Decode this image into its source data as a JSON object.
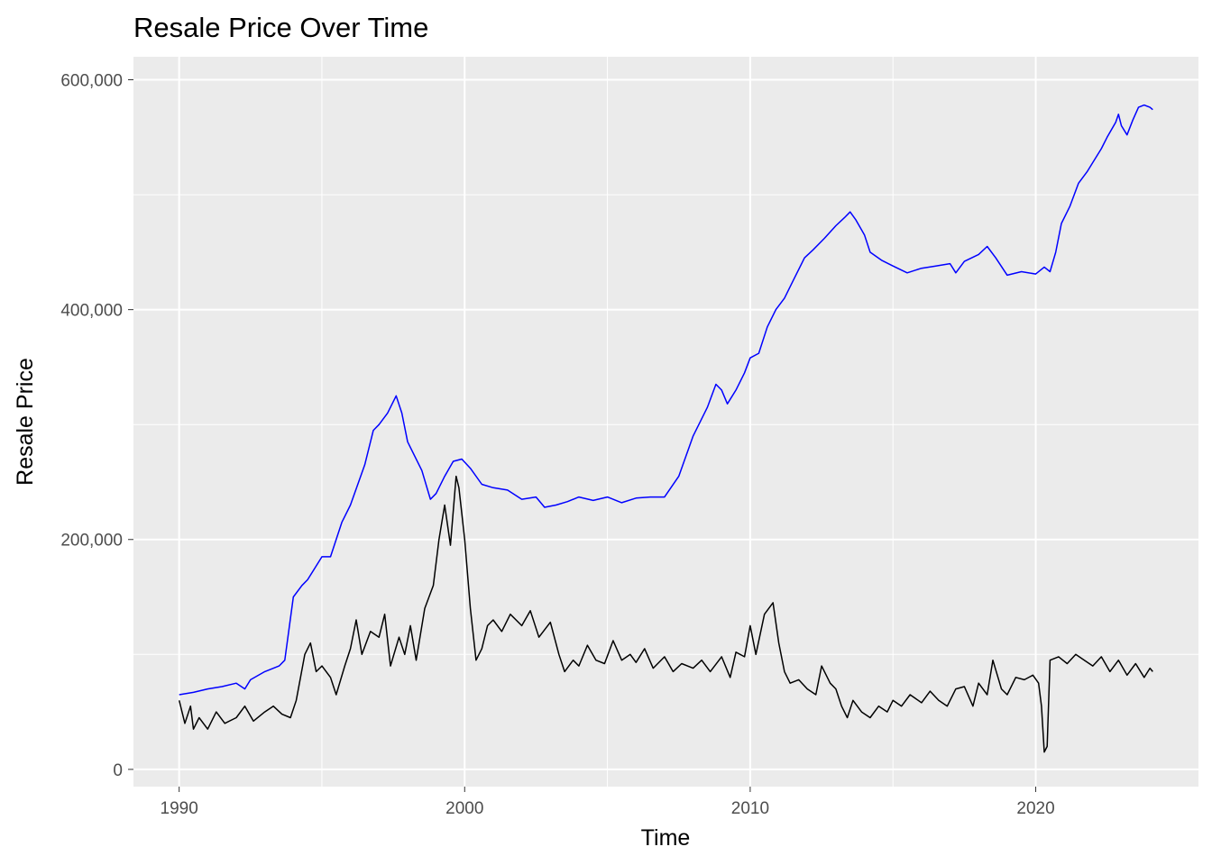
{
  "chart_data": {
    "type": "line",
    "title": "Resale Price Over Time",
    "xlabel": "Time",
    "ylabel": "Resale Price",
    "xlim": [
      1988.4,
      2025.7
    ],
    "ylim": [
      -15000,
      620000
    ],
    "x_ticks": [
      1990,
      2000,
      2010,
      2020
    ],
    "x_tick_labels": [
      "1990",
      "2000",
      "2010",
      "2020"
    ],
    "y_ticks": [
      0,
      200000,
      400000,
      600000
    ],
    "y_tick_labels": [
      "0",
      "200,000",
      "400,000",
      "600,000"
    ],
    "x_minor_ticks": [
      1995,
      2005,
      2015
    ],
    "y_minor_ticks": [
      100000,
      300000,
      500000
    ],
    "grid": true,
    "colors": {
      "panel": "#ebebeb",
      "grid": "#ffffff",
      "series_upper": "#0000ff",
      "series_lower": "#000000"
    },
    "series": [
      {
        "name": "upper",
        "color": "#0000ff",
        "points": [
          [
            1990.0,
            65000
          ],
          [
            1990.5,
            67000
          ],
          [
            1991.0,
            70000
          ],
          [
            1991.5,
            72000
          ],
          [
            1992.0,
            75000
          ],
          [
            1992.3,
            70000
          ],
          [
            1992.5,
            78000
          ],
          [
            1993.0,
            85000
          ],
          [
            1993.5,
            90000
          ],
          [
            1993.7,
            95000
          ],
          [
            1994.0,
            150000
          ],
          [
            1994.3,
            160000
          ],
          [
            1994.5,
            165000
          ],
          [
            1995.0,
            185000
          ],
          [
            1995.3,
            185000
          ],
          [
            1995.7,
            215000
          ],
          [
            1996.0,
            230000
          ],
          [
            1996.5,
            265000
          ],
          [
            1996.8,
            295000
          ],
          [
            1997.0,
            300000
          ],
          [
            1997.3,
            310000
          ],
          [
            1997.6,
            325000
          ],
          [
            1997.8,
            310000
          ],
          [
            1998.0,
            285000
          ],
          [
            1998.5,
            260000
          ],
          [
            1998.8,
            235000
          ],
          [
            1999.0,
            240000
          ],
          [
            1999.3,
            255000
          ],
          [
            1999.6,
            268000
          ],
          [
            1999.9,
            270000
          ],
          [
            2000.2,
            262000
          ],
          [
            2000.6,
            248000
          ],
          [
            2001.0,
            245000
          ],
          [
            2001.5,
            243000
          ],
          [
            2002.0,
            235000
          ],
          [
            2002.5,
            237000
          ],
          [
            2002.8,
            228000
          ],
          [
            2003.2,
            230000
          ],
          [
            2003.6,
            233000
          ],
          [
            2004.0,
            237000
          ],
          [
            2004.5,
            234000
          ],
          [
            2005.0,
            237000
          ],
          [
            2005.5,
            232000
          ],
          [
            2006.0,
            236000
          ],
          [
            2006.5,
            237000
          ],
          [
            2007.0,
            237000
          ],
          [
            2007.5,
            255000
          ],
          [
            2008.0,
            290000
          ],
          [
            2008.5,
            315000
          ],
          [
            2008.8,
            335000
          ],
          [
            2009.0,
            330000
          ],
          [
            2009.2,
            318000
          ],
          [
            2009.5,
            330000
          ],
          [
            2009.8,
            345000
          ],
          [
            2010.0,
            358000
          ],
          [
            2010.3,
            362000
          ],
          [
            2010.6,
            385000
          ],
          [
            2010.9,
            400000
          ],
          [
            2011.2,
            410000
          ],
          [
            2011.5,
            425000
          ],
          [
            2011.9,
            445000
          ],
          [
            2012.2,
            452000
          ],
          [
            2012.6,
            462000
          ],
          [
            2013.0,
            473000
          ],
          [
            2013.3,
            480000
          ],
          [
            2013.5,
            485000
          ],
          [
            2013.7,
            478000
          ],
          [
            2014.0,
            465000
          ],
          [
            2014.2,
            450000
          ],
          [
            2014.6,
            443000
          ],
          [
            2015.0,
            438000
          ],
          [
            2015.5,
            432000
          ],
          [
            2016.0,
            436000
          ],
          [
            2016.5,
            438000
          ],
          [
            2017.0,
            440000
          ],
          [
            2017.2,
            432000
          ],
          [
            2017.5,
            442000
          ],
          [
            2018.0,
            448000
          ],
          [
            2018.3,
            455000
          ],
          [
            2018.6,
            445000
          ],
          [
            2019.0,
            430000
          ],
          [
            2019.5,
            433000
          ],
          [
            2020.0,
            431000
          ],
          [
            2020.3,
            437000
          ],
          [
            2020.5,
            433000
          ],
          [
            2020.7,
            450000
          ],
          [
            2020.9,
            475000
          ],
          [
            2021.2,
            490000
          ],
          [
            2021.5,
            510000
          ],
          [
            2021.8,
            520000
          ],
          [
            2022.0,
            528000
          ],
          [
            2022.3,
            540000
          ],
          [
            2022.5,
            550000
          ],
          [
            2022.8,
            563000
          ],
          [
            2022.9,
            570000
          ],
          [
            2023.0,
            560000
          ],
          [
            2023.2,
            552000
          ],
          [
            2023.4,
            565000
          ],
          [
            2023.6,
            576000
          ],
          [
            2023.8,
            578000
          ],
          [
            2024.0,
            576000
          ],
          [
            2024.1,
            574000
          ]
        ]
      },
      {
        "name": "lower",
        "color": "#000000",
        "points": [
          [
            1990.0,
            60000
          ],
          [
            1990.2,
            40000
          ],
          [
            1990.4,
            55000
          ],
          [
            1990.5,
            35000
          ],
          [
            1990.7,
            45000
          ],
          [
            1991.0,
            35000
          ],
          [
            1991.3,
            50000
          ],
          [
            1991.6,
            40000
          ],
          [
            1992.0,
            45000
          ],
          [
            1992.3,
            55000
          ],
          [
            1992.6,
            42000
          ],
          [
            1993.0,
            50000
          ],
          [
            1993.3,
            55000
          ],
          [
            1993.6,
            48000
          ],
          [
            1993.9,
            45000
          ],
          [
            1994.1,
            60000
          ],
          [
            1994.4,
            100000
          ],
          [
            1994.6,
            110000
          ],
          [
            1994.8,
            85000
          ],
          [
            1995.0,
            90000
          ],
          [
            1995.3,
            80000
          ],
          [
            1995.5,
            65000
          ],
          [
            1995.8,
            90000
          ],
          [
            1996.0,
            105000
          ],
          [
            1996.2,
            130000
          ],
          [
            1996.4,
            100000
          ],
          [
            1996.7,
            120000
          ],
          [
            1997.0,
            115000
          ],
          [
            1997.2,
            135000
          ],
          [
            1997.4,
            90000
          ],
          [
            1997.7,
            115000
          ],
          [
            1997.9,
            100000
          ],
          [
            1998.1,
            125000
          ],
          [
            1998.3,
            95000
          ],
          [
            1998.6,
            140000
          ],
          [
            1998.9,
            160000
          ],
          [
            1999.1,
            200000
          ],
          [
            1999.3,
            230000
          ],
          [
            1999.5,
            195000
          ],
          [
            1999.7,
            255000
          ],
          [
            1999.8,
            245000
          ],
          [
            2000.0,
            200000
          ],
          [
            2000.2,
            140000
          ],
          [
            2000.4,
            95000
          ],
          [
            2000.6,
            105000
          ],
          [
            2000.8,
            125000
          ],
          [
            2001.0,
            130000
          ],
          [
            2001.3,
            120000
          ],
          [
            2001.6,
            135000
          ],
          [
            2002.0,
            125000
          ],
          [
            2002.3,
            138000
          ],
          [
            2002.6,
            115000
          ],
          [
            2003.0,
            128000
          ],
          [
            2003.3,
            100000
          ],
          [
            2003.5,
            85000
          ],
          [
            2003.8,
            95000
          ],
          [
            2004.0,
            90000
          ],
          [
            2004.3,
            108000
          ],
          [
            2004.6,
            95000
          ],
          [
            2004.9,
            92000
          ],
          [
            2005.2,
            112000
          ],
          [
            2005.5,
            95000
          ],
          [
            2005.8,
            100000
          ],
          [
            2006.0,
            93000
          ],
          [
            2006.3,
            105000
          ],
          [
            2006.6,
            88000
          ],
          [
            2007.0,
            98000
          ],
          [
            2007.3,
            85000
          ],
          [
            2007.6,
            92000
          ],
          [
            2008.0,
            88000
          ],
          [
            2008.3,
            95000
          ],
          [
            2008.6,
            85000
          ],
          [
            2009.0,
            98000
          ],
          [
            2009.3,
            80000
          ],
          [
            2009.5,
            102000
          ],
          [
            2009.8,
            98000
          ],
          [
            2010.0,
            125000
          ],
          [
            2010.2,
            100000
          ],
          [
            2010.5,
            135000
          ],
          [
            2010.8,
            145000
          ],
          [
            2011.0,
            110000
          ],
          [
            2011.2,
            85000
          ],
          [
            2011.4,
            75000
          ],
          [
            2011.7,
            78000
          ],
          [
            2012.0,
            70000
          ],
          [
            2012.3,
            65000
          ],
          [
            2012.5,
            90000
          ],
          [
            2012.8,
            75000
          ],
          [
            2013.0,
            70000
          ],
          [
            2013.2,
            55000
          ],
          [
            2013.4,
            45000
          ],
          [
            2013.6,
            60000
          ],
          [
            2013.9,
            50000
          ],
          [
            2014.2,
            45000
          ],
          [
            2014.5,
            55000
          ],
          [
            2014.8,
            50000
          ],
          [
            2015.0,
            60000
          ],
          [
            2015.3,
            55000
          ],
          [
            2015.6,
            65000
          ],
          [
            2016.0,
            58000
          ],
          [
            2016.3,
            68000
          ],
          [
            2016.6,
            60000
          ],
          [
            2016.9,
            55000
          ],
          [
            2017.2,
            70000
          ],
          [
            2017.5,
            72000
          ],
          [
            2017.8,
            55000
          ],
          [
            2018.0,
            75000
          ],
          [
            2018.3,
            65000
          ],
          [
            2018.5,
            95000
          ],
          [
            2018.8,
            70000
          ],
          [
            2019.0,
            65000
          ],
          [
            2019.3,
            80000
          ],
          [
            2019.6,
            78000
          ],
          [
            2019.9,
            82000
          ],
          [
            2020.1,
            75000
          ],
          [
            2020.2,
            55000
          ],
          [
            2020.3,
            15000
          ],
          [
            2020.4,
            20000
          ],
          [
            2020.5,
            95000
          ],
          [
            2020.8,
            98000
          ],
          [
            2021.1,
            92000
          ],
          [
            2021.4,
            100000
          ],
          [
            2021.7,
            95000
          ],
          [
            2022.0,
            90000
          ],
          [
            2022.3,
            98000
          ],
          [
            2022.6,
            85000
          ],
          [
            2022.9,
            95000
          ],
          [
            2023.2,
            82000
          ],
          [
            2023.5,
            92000
          ],
          [
            2023.8,
            80000
          ],
          [
            2024.0,
            88000
          ],
          [
            2024.1,
            85000
          ]
        ]
      }
    ]
  }
}
